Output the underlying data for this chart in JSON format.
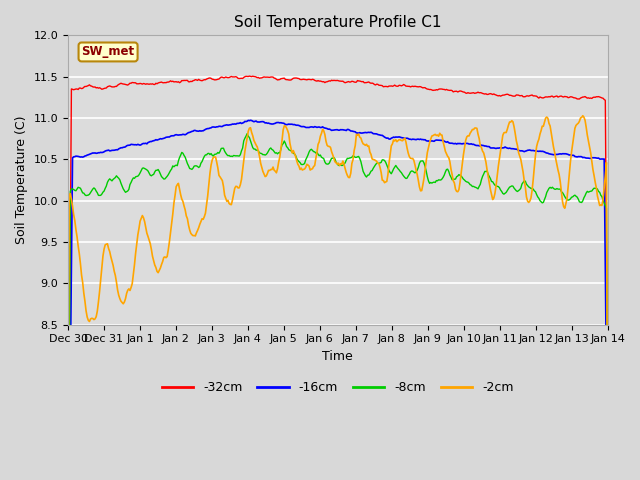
{
  "title": "Soil Temperature Profile C1",
  "xlabel": "Time",
  "ylabel": "Soil Temperature (C)",
  "ylim": [
    8.5,
    12.0
  ],
  "yticks": [
    8.5,
    9.0,
    9.5,
    10.0,
    10.5,
    11.0,
    11.5,
    12.0
  ],
  "label_box": "SW_met",
  "series_labels": [
    "-32cm",
    "-16cm",
    "-8cm",
    "-2cm"
  ],
  "series_colors": [
    "#ff0000",
    "#0000ff",
    "#00cc00",
    "#ffa500"
  ],
  "x_tick_labels": [
    "Dec 30",
    "Dec 31",
    "Jan 1",
    "Jan 2",
    "Jan 3",
    "Jan 4",
    "Jan 5",
    "Jan 6",
    "Jan 7",
    "Jan 8",
    "Jan 9",
    "Jan 10",
    "Jan 11",
    "Jan 12",
    "Jan 13",
    "Jan 14"
  ],
  "num_points": 480,
  "fig_width": 6.4,
  "fig_height": 4.8,
  "dpi": 100,
  "background_color": "#d8d8d8",
  "plot_bg_color": "#dcdcdc",
  "grid_color": "#ffffff",
  "title_fontsize": 11,
  "label_fontsize": 9,
  "tick_fontsize": 8
}
